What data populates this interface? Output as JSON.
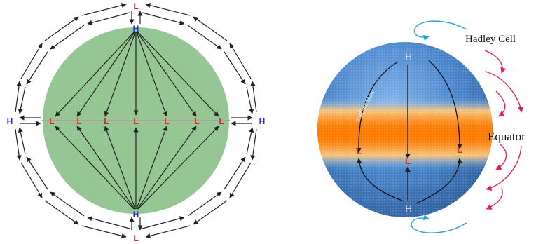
{
  "left_diagram": {
    "pressure_labels": {
      "north_pole_surface": "H",
      "north_pole_aloft": "L",
      "south_pole_surface": "H",
      "south_pole_aloft": "L",
      "west_aloft": "H",
      "east_aloft": "H",
      "equator_lows": [
        "L",
        "L",
        "L",
        "L",
        "L",
        "L",
        "L"
      ]
    },
    "colors": {
      "planet": "#96c694",
      "arrow": "#222222",
      "equator_line": "#b69aa8"
    }
  },
  "right_diagram": {
    "cell_label": "Hadley Cell",
    "equator_label": "Equator",
    "flow_label": "surface flow",
    "pressure_labels": {
      "north_high": "H",
      "south_high": "H",
      "equator_lows": [
        "L",
        "L",
        "L"
      ]
    },
    "colors": {
      "ocean": "#4a86cc",
      "warm_band": "#ff7a00",
      "return_flow": "#e0244e",
      "upper_flow": "#2aa0e8"
    }
  }
}
